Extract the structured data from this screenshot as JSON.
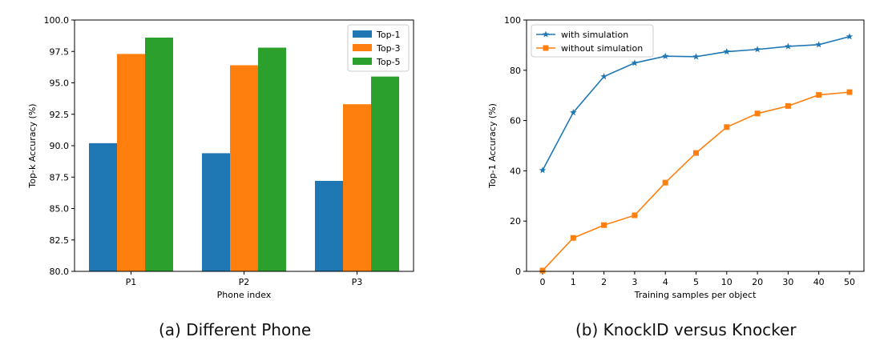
{
  "captions": {
    "a": "(a) Different Phone",
    "b": "(b) KnockID versus Knocker"
  },
  "chart_data": [
    {
      "type": "bar",
      "title": "",
      "xlabel": "Phone index",
      "ylabel": "Top-k Accuracy (%)",
      "ylim": [
        80.0,
        100.0
      ],
      "yticks": [
        80.0,
        82.5,
        85.0,
        87.5,
        90.0,
        92.5,
        95.0,
        97.5,
        100.0
      ],
      "ytick_labels": [
        "80.0",
        "82.5",
        "85.0",
        "87.5",
        "90.0",
        "92.5",
        "95.0",
        "97.5",
        "100.0"
      ],
      "categories": [
        "P1",
        "P2",
        "P3"
      ],
      "series": [
        {
          "name": "Top-1",
          "color": "#1f77b4",
          "values": [
            90.2,
            89.4,
            87.2
          ]
        },
        {
          "name": "Top-3",
          "color": "#ff7f0e",
          "values": [
            97.3,
            96.4,
            93.3
          ]
        },
        {
          "name": "Top-5",
          "color": "#2ca02c",
          "values": [
            98.6,
            97.8,
            95.5
          ]
        }
      ],
      "legend": "top-right",
      "grid": false
    },
    {
      "type": "line",
      "title": "",
      "xlabel": "Training samples per object",
      "ylabel": "Top-1 Accuracy (%)",
      "ylim": [
        0,
        100
      ],
      "yticks": [
        0,
        20,
        40,
        60,
        80,
        100
      ],
      "ytick_labels": [
        "0",
        "20",
        "40",
        "60",
        "80",
        "100"
      ],
      "categories": [
        "0",
        "1",
        "2",
        "3",
        "4",
        "5",
        "10",
        "20",
        "30",
        "40",
        "50"
      ],
      "series": [
        {
          "name": "with simulation",
          "color": "#1f77b4",
          "marker": "star",
          "values": [
            40.2,
            63.2,
            77.5,
            82.9,
            85.6,
            85.4,
            87.4,
            88.3,
            89.5,
            90.2,
            93.4
          ]
        },
        {
          "name": "without simulation",
          "color": "#ff7f0e",
          "marker": "square",
          "values": [
            0.3,
            13.3,
            18.4,
            22.3,
            35.3,
            47.1,
            57.4,
            62.8,
            65.8,
            70.2,
            71.3
          ]
        }
      ],
      "legend": "top-left",
      "grid": false
    }
  ]
}
